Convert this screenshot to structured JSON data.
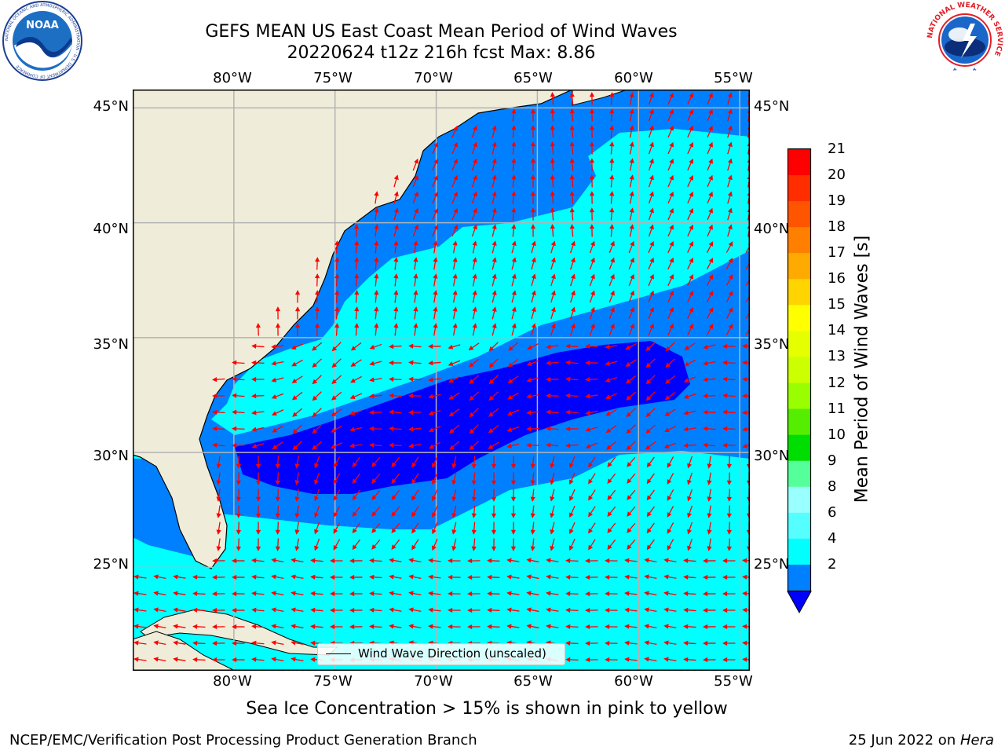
{
  "title_line1": "GEFS MEAN US East Coast Mean Period of Wind Waves",
  "title_line2": "20220624 t12z 216h fcst   Max: 8.86",
  "logos": {
    "noaa": {
      "label": "NOAA",
      "ring_text": "NATIONAL OCEANIC AND ATMOSPHERIC ADMINISTRATION · U.S. DEPARTMENT OF COMMERCE"
    },
    "nws": {
      "ring_text": "NATIONAL WEATHER SERVICE"
    }
  },
  "map": {
    "lon_range": [
      -85,
      -54.5
    ],
    "lat_range": [
      20.5,
      45.8
    ],
    "lon_ticks_top": [
      "80°W",
      "75°W",
      "70°W",
      "65°W",
      "60°W",
      "55°W"
    ],
    "lon_ticks_bottom": [
      "80°W",
      "75°W",
      "70°W",
      "65°W",
      "60°W",
      "55°W"
    ],
    "lat_ticks_left": [
      "45°N",
      "40°N",
      "35°N",
      "30°N",
      "25°N"
    ],
    "lat_ticks_right": [
      "45°N",
      "40°N",
      "35°N",
      "30°N",
      "25°N"
    ],
    "grid": true,
    "land_color": "#efedd9",
    "ocean_color": "#00ffff",
    "arrow_color": "#ff0000",
    "legend_label": "Wind Wave Direction (unscaled)"
  },
  "colorbar": {
    "title": "Mean Period of Wind Waves [s]",
    "ticks": [
      "21",
      "20",
      "19",
      "18",
      "17",
      "16",
      "15",
      "14",
      "13",
      "12",
      "11",
      "10",
      "9",
      "8",
      "6",
      "4",
      "2"
    ],
    "colors": [
      "#ff0000",
      "#ff2d00",
      "#ff5500",
      "#ff8000",
      "#ffaa00",
      "#ffd400",
      "#ffff00",
      "#e6ff00",
      "#ccff00",
      "#99ff00",
      "#55ee00",
      "#00dd00",
      "#55ff99",
      "#99ffff",
      "#55ffff",
      "#00ffff",
      "#0080ff"
    ],
    "under_color": "#0000ff"
  },
  "subtitle": "Sea Ice Concentration > 15% is shown in pink to yellow",
  "footer_left": "NCEP/EMC/Verification Post Processing Product Generation Branch",
  "footer_right_date": "25 Jun 2022 on ",
  "footer_right_host": "Hera"
}
